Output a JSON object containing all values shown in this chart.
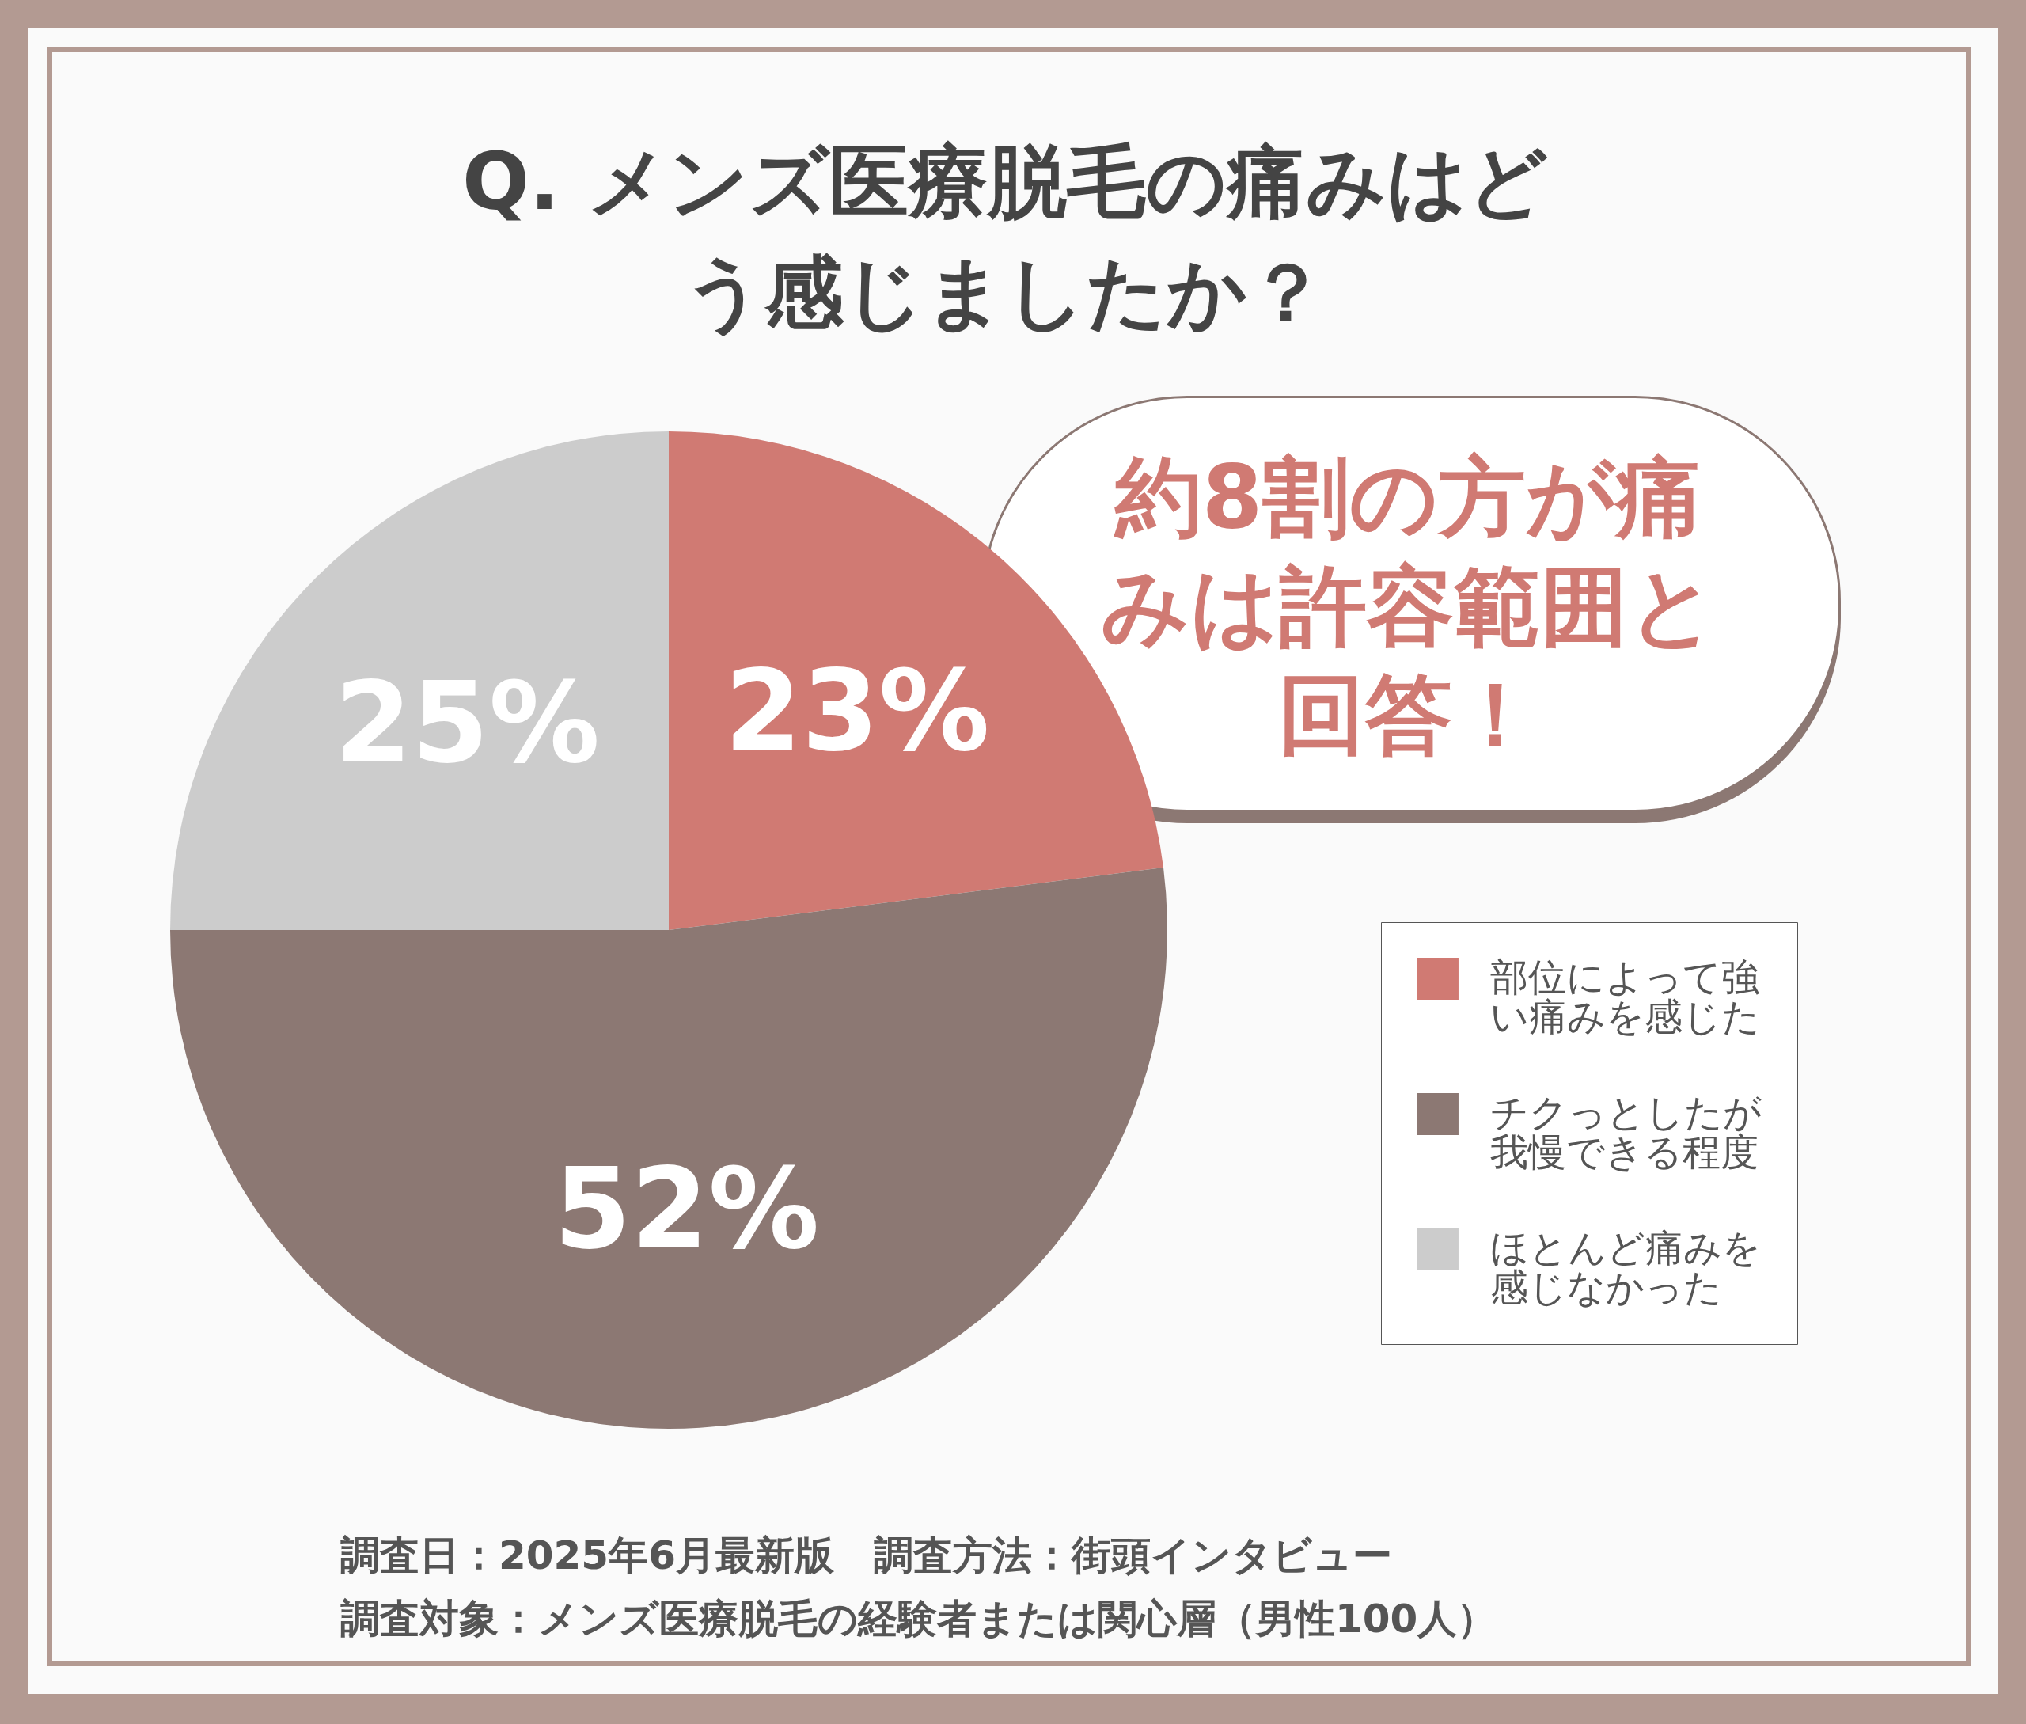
{
  "chart_data": {
    "type": "pie",
    "title": "Q. メンズ医療脱毛の痛みはどう感じましたか？",
    "categories": [
      "部位によって強い痛みを感じた",
      "チクっとしたが我慢できる程度",
      "ほとんど痛みを感じなかった"
    ],
    "values": [
      23,
      52,
      25
    ],
    "colors": [
      "#d07a73",
      "#8c7873",
      "#cccccc"
    ],
    "value_labels": [
      "23%",
      "52%",
      "25%"
    ],
    "legend": "right",
    "annotations": [
      "約8割の方が痛みは許容範囲と回答！",
      "調査日：2025年6月最新版　調査方法：街頭インタビュー",
      "調査対象：メンズ医療脱毛の経験者または関心層（男性100人）"
    ]
  }
}
